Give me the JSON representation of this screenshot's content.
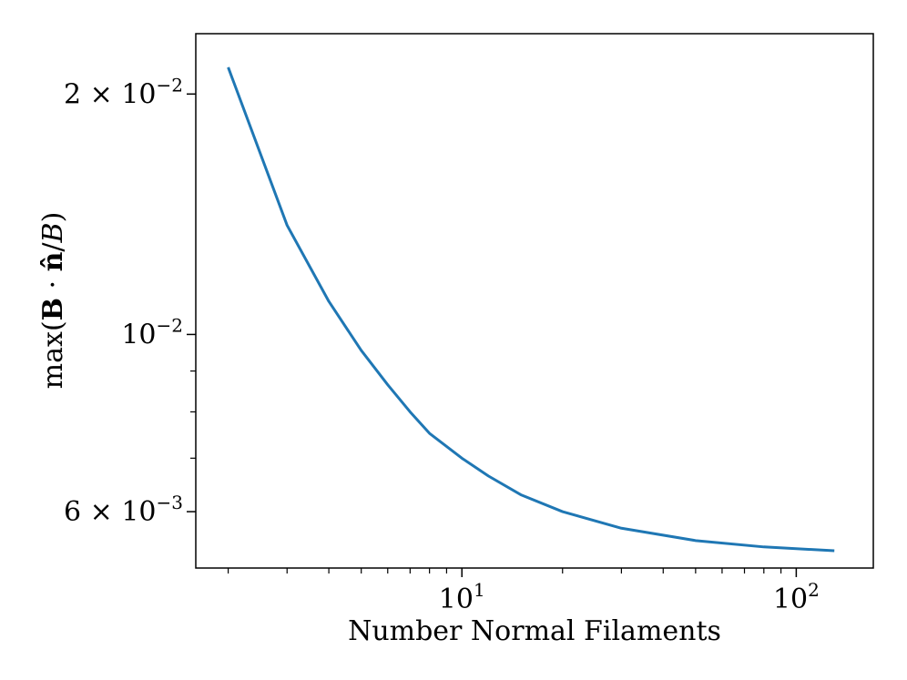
{
  "chart_data": {
    "type": "line",
    "title": "",
    "xlabel": "Number Normal Filaments",
    "ylabel": {
      "prefix": "max(",
      "bold1": "B",
      "dot": " · ",
      "bold2": "n̂",
      "slash": "/",
      "italic": "B",
      "suffix": ")"
    },
    "xscale": "log",
    "yscale": "log",
    "xlim": [
      1.6,
      170
    ],
    "ylim": [
      0.0051,
      0.0238
    ],
    "grid": false,
    "color": "#1f77b4",
    "x_ticks": [
      {
        "value": 10,
        "base": "10",
        "exp": "1"
      },
      {
        "value": 100,
        "base": "10",
        "exp": "2"
      }
    ],
    "y_ticks": [
      {
        "value": 0.02,
        "base": "2 × 10",
        "exp": "−2"
      },
      {
        "value": 0.01,
        "base": "10",
        "exp": "−2"
      },
      {
        "value": 0.006,
        "base": "6 × 10",
        "exp": "−3"
      }
    ],
    "series": [
      {
        "x": [
          2,
          3,
          4,
          5,
          6,
          7,
          8,
          10,
          12,
          15,
          20,
          30,
          50,
          80,
          130
        ],
        "y": [
          0.0216,
          0.0137,
          0.011,
          0.00955,
          0.00865,
          0.008,
          0.00752,
          0.007,
          0.00665,
          0.0063,
          0.006,
          0.00572,
          0.00552,
          0.00542,
          0.00536
        ]
      }
    ]
  }
}
